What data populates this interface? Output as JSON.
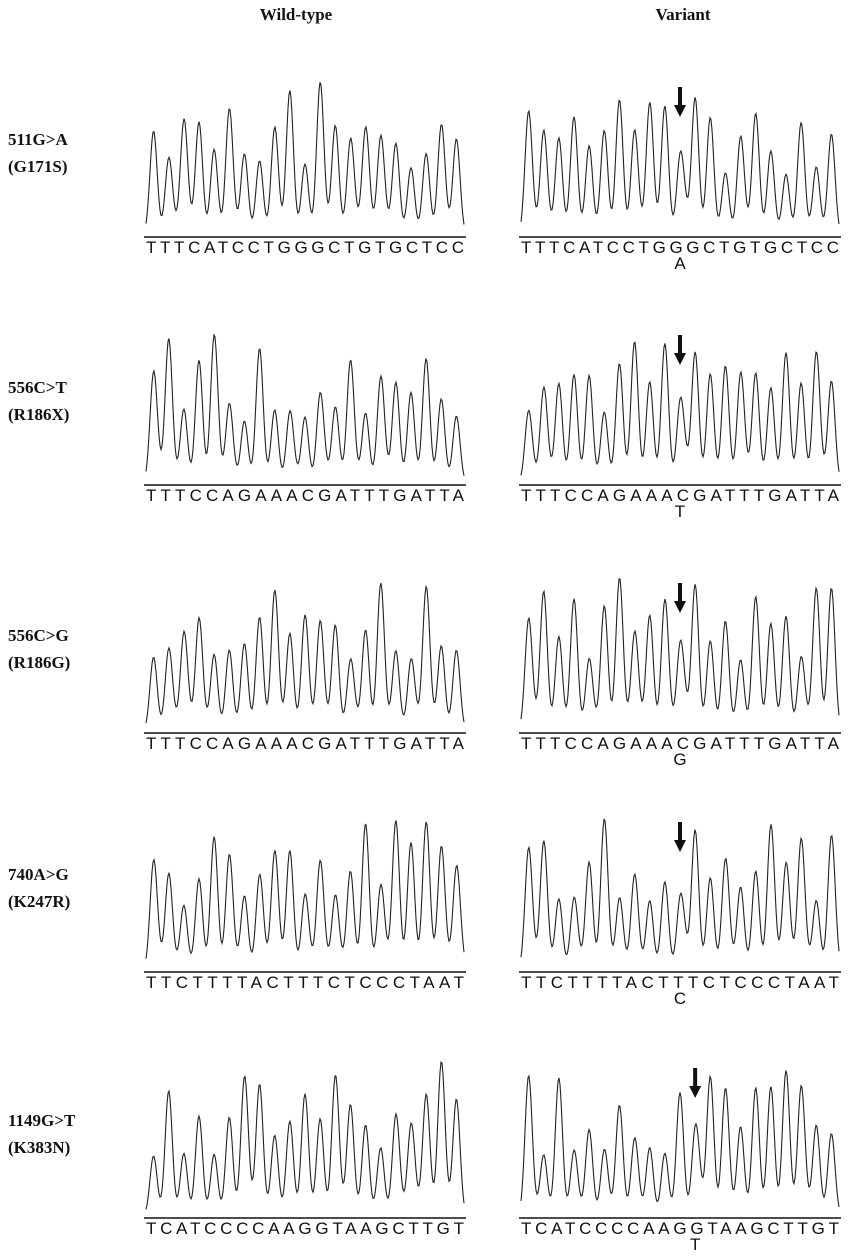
{
  "headers": {
    "wild_type": "Wild-type",
    "variant": "Variant"
  },
  "rows": [
    {
      "mutation": "511G>A",
      "protein": "(G171S)",
      "wild_type_sequence": "TTTCATCCTGGGCTGTGCTCC",
      "variant_sequence": {
        "before": "TTTCATCCTG",
        "site": "G",
        "after": "GCTGTGCTCC"
      },
      "variant_base": "A"
    },
    {
      "mutation": "556C>T",
      "protein": "(R186X)",
      "wild_type_sequence": "TTTCCAGAAACGATTTGATTA",
      "variant_sequence": {
        "before": "TTTCCAGAAA",
        "site": "C",
        "after": "GATTTGATTA"
      },
      "variant_base": "T"
    },
    {
      "mutation": "556C>G",
      "protein": "(R186G)",
      "wild_type_sequence": "TTTCCAGAAACGATTTGATTA",
      "variant_sequence": {
        "before": "TTTCCAGAAA",
        "site": "C",
        "after": "GATTTGATTA"
      },
      "variant_base": "G"
    },
    {
      "mutation": "740A>G",
      "protein": "(K247R)",
      "wild_type_sequence": "TTCTTTTACTTTCTCCCTAAT",
      "variant_sequence": {
        "before": "TTCTTTTACT",
        "site": "T",
        "after": "TCTCCCTAAT"
      },
      "variant_base": "C"
    },
    {
      "mutation": "1149G>T",
      "protein": "(K383N)",
      "wild_type_sequence": "TCATCCCCAAGGTAAGCTTGT",
      "variant_sequence": {
        "before": "TCATCCCCAAG",
        "site": "G",
        "after": "TAAGCTTGT"
      },
      "variant_base": "T"
    }
  ]
}
